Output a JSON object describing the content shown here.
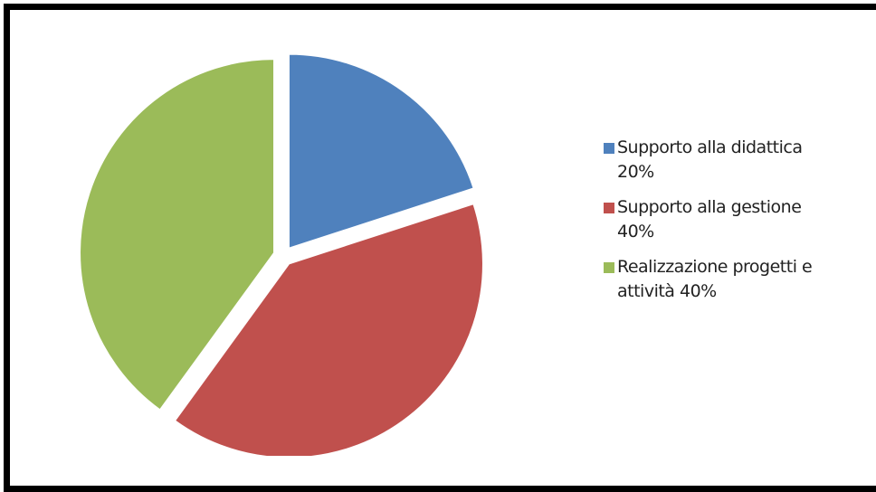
{
  "chart_data": {
    "type": "pie",
    "title": "",
    "exploded": true,
    "start_angle_deg": 0,
    "direction": "clockwise",
    "legend_position": "right",
    "slices": [
      {
        "name": "Supporto alla didattica",
        "value": 20,
        "value_label": "20%",
        "legend_lines": [
          "Supporto alla didattica",
          "20%"
        ],
        "color": "#4F81BD"
      },
      {
        "name": "Supporto alla gestione",
        "value": 40,
        "value_label": "40%",
        "legend_lines": [
          "Supporto alla gestione",
          "40%"
        ],
        "color": "#C0504D"
      },
      {
        "name": "Realizzazione progetti e attività",
        "value": 40,
        "value_label": "40%",
        "legend_lines": [
          "Realizzazione progetti e",
          "attività 40%"
        ],
        "color": "#9BBB59"
      }
    ]
  }
}
